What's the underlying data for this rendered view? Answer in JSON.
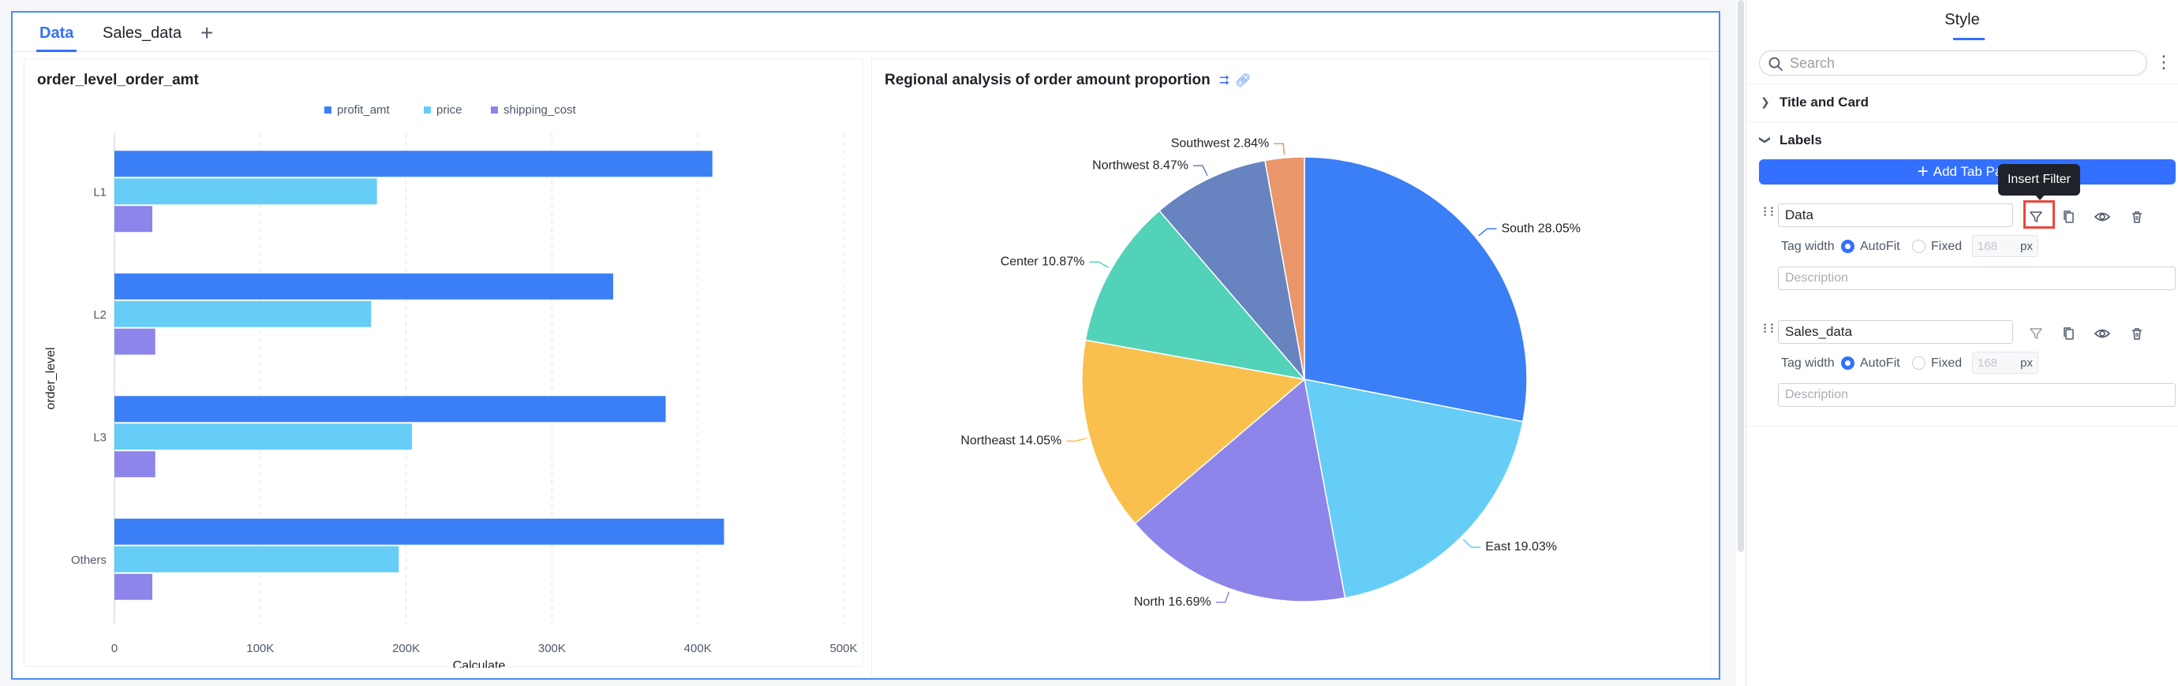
{
  "tabs": {
    "items": [
      {
        "label": "Data",
        "active": true
      },
      {
        "label": "Sales_data",
        "active": false
      }
    ],
    "add_label": "+"
  },
  "bar_card": {
    "title": "order_level_order_amt",
    "chart_data": {
      "type": "bar",
      "orientation": "horizontal",
      "categories": [
        "L1",
        "L2",
        "L3",
        "Others"
      ],
      "series": [
        {
          "name": "profit_amt",
          "color": "#3b7ff6",
          "values": [
            410000,
            342000,
            378000,
            418000
          ]
        },
        {
          "name": "price",
          "color": "#65cdf6",
          "values": [
            180000,
            176000,
            204000,
            195000
          ]
        },
        {
          "name": "shipping_cost",
          "color": "#8e85ea",
          "values": [
            26000,
            28000,
            28000,
            26000
          ]
        }
      ],
      "xlabel": "Calculate",
      "ylabel": "order_level",
      "xlim": [
        0,
        500000
      ],
      "xticks": [
        0,
        100000,
        200000,
        300000,
        400000,
        500000
      ],
      "xtick_labels": [
        "0",
        "100K",
        "200K",
        "300K",
        "400K",
        "500K"
      ],
      "legend": "top-center",
      "grid": true
    }
  },
  "pie_card": {
    "title": "Regional analysis of order amount proportion",
    "icons": [
      "drill-icon",
      "link-icon"
    ],
    "chart_data": {
      "type": "pie",
      "slices": [
        {
          "label": "South 28.05%",
          "value": 28.05,
          "color": "#3b7ff6"
        },
        {
          "label": "East 19.03%",
          "value": 19.03,
          "color": "#65cdf6"
        },
        {
          "label": "North 16.69%",
          "value": 16.69,
          "color": "#8e85ea"
        },
        {
          "label": "Northeast 14.05%",
          "value": 14.05,
          "color": "#fac04d"
        },
        {
          "label": "Center 10.87%",
          "value": 10.87,
          "color": "#52d2b8"
        },
        {
          "label": "Northwest 8.47%",
          "value": 8.47,
          "color": "#6783c0"
        },
        {
          "label": "Southwest 2.84%",
          "value": 2.84,
          "color": "#e8966a"
        }
      ],
      "start_angle": "top",
      "direction": "clockwise"
    }
  },
  "panel": {
    "title": "Style",
    "search_placeholder": "Search",
    "sections": {
      "title_card": "Title and Card",
      "labels": "Labels"
    },
    "add_tab_label": "Add Tab Page",
    "tooltip": "Insert Filter",
    "tab_rows": [
      {
        "name": "Data",
        "tag_width_label": "Tag width",
        "autofit_label": "AutoFit",
        "fixed_label": "Fixed",
        "width_value": "168",
        "unit": "px",
        "desc_placeholder": "Description"
      },
      {
        "name": "Sales_data",
        "tag_width_label": "Tag width",
        "autofit_label": "AutoFit",
        "fixed_label": "Fixed",
        "width_value": "168",
        "unit": "px",
        "desc_placeholder": "Description"
      }
    ]
  },
  "colors": {
    "accent": "#3370ff",
    "highlight": "#e8483b",
    "tooltip_bg": "#1f2329"
  }
}
